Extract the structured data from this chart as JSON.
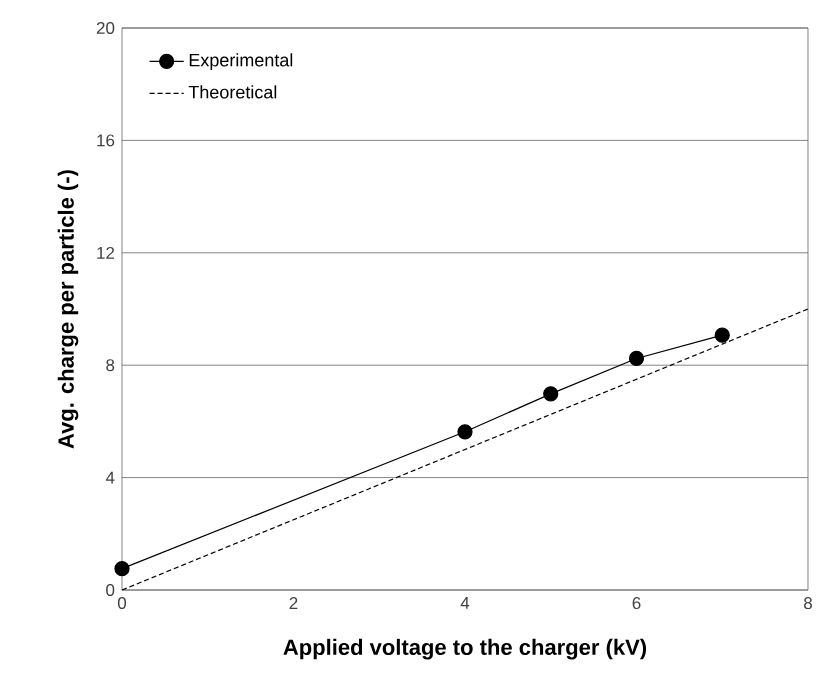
{
  "chart_data": {
    "type": "line",
    "xlabel": "Applied voltage to the charger (kV)",
    "ylabel": "Avg. charge per particle (-)",
    "xlim": [
      0,
      8
    ],
    "ylim": [
      0,
      20
    ],
    "xticks": [
      0,
      2,
      4,
      6,
      8
    ],
    "yticks": [
      0,
      4,
      8,
      12,
      16,
      20
    ],
    "grid": "y",
    "legend": "top left",
    "series": [
      {
        "name": "Experimental",
        "color": "#000000",
        "x": [
          0,
          4,
          5,
          6,
          7
        ],
        "values": [
          0.76,
          5.63,
          6.98,
          8.24,
          9.07
        ],
        "marker": "circle",
        "line_style": "solid"
      },
      {
        "name": "Theoretical",
        "color": "#000000",
        "x": [
          0,
          8
        ],
        "values": [
          0,
          10
        ],
        "marker": "none",
        "line_style": "dashed"
      }
    ]
  }
}
